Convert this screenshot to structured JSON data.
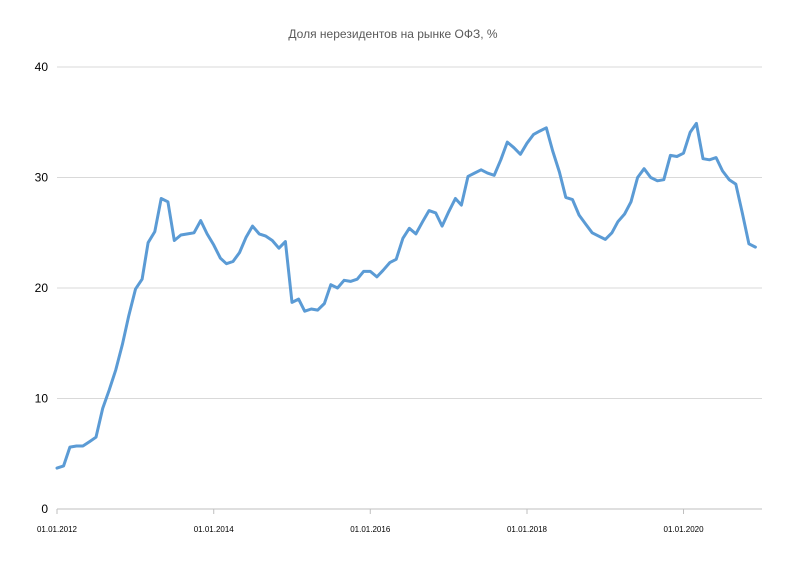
{
  "chart_data": {
    "type": "line",
    "title": "Доля нерезидентов на рынке ОФЗ, %",
    "xlabel": "",
    "ylabel": "",
    "ylim": [
      0,
      40
    ],
    "yticks": [
      "0",
      "10",
      "20",
      "30",
      "40"
    ],
    "xticks": [
      {
        "value": "2012-01-01",
        "label": "01.01.2012"
      },
      {
        "value": "2014-01-01",
        "label": "01.01.2014"
      },
      {
        "value": "2016-01-01",
        "label": "01.01.2016"
      },
      {
        "value": "2018-01-01",
        "label": "01.01.2018"
      },
      {
        "value": "2020-01-01",
        "label": "01.01.2020"
      }
    ],
    "xlim": [
      "2012-01-01",
      "2021-01-01"
    ],
    "grid": true,
    "legend": "none",
    "colors": {
      "series": "#5b9bd5",
      "grid": "#d9d9d9"
    },
    "series": [
      {
        "x": [
          "2012-01-01",
          "2012-02-01",
          "2012-03-01",
          "2012-04-01",
          "2012-05-01",
          "2012-06-01",
          "2012-07-01",
          "2012-08-01",
          "2012-09-01",
          "2012-10-01",
          "2012-11-01",
          "2012-12-01",
          "2013-01-01",
          "2013-02-01",
          "2013-03-01",
          "2013-04-01",
          "2013-05-01",
          "2013-06-01",
          "2013-07-01",
          "2013-08-01",
          "2013-09-01",
          "2013-10-01",
          "2013-11-01",
          "2013-12-01",
          "2014-01-01",
          "2014-02-01",
          "2014-03-01",
          "2014-04-01",
          "2014-05-01",
          "2014-06-01",
          "2014-07-01",
          "2014-08-01",
          "2014-09-01",
          "2014-10-01",
          "2014-11-01",
          "2014-12-01",
          "2015-01-01",
          "2015-02-01",
          "2015-03-01",
          "2015-04-01",
          "2015-05-01",
          "2015-06-01",
          "2015-07-01",
          "2015-08-01",
          "2015-09-01",
          "2015-10-01",
          "2015-11-01",
          "2015-12-01",
          "2016-01-01",
          "2016-02-01",
          "2016-03-01",
          "2016-04-01",
          "2016-05-01",
          "2016-06-01",
          "2016-07-01",
          "2016-08-01",
          "2016-09-01",
          "2016-10-01",
          "2016-11-01",
          "2016-12-01",
          "2017-01-01",
          "2017-02-01",
          "2017-03-01",
          "2017-04-01",
          "2017-05-01",
          "2017-06-01",
          "2017-07-01",
          "2017-08-01",
          "2017-09-01",
          "2017-10-01",
          "2017-11-01",
          "2017-12-01",
          "2018-01-01",
          "2018-02-01",
          "2018-03-01",
          "2018-04-01",
          "2018-05-01",
          "2018-06-01",
          "2018-07-01",
          "2018-08-01",
          "2018-09-01",
          "2018-10-01",
          "2018-11-01",
          "2018-12-01",
          "2019-01-01",
          "2019-02-01",
          "2019-03-01",
          "2019-04-01",
          "2019-05-01",
          "2019-06-01",
          "2019-07-01",
          "2019-08-01",
          "2019-09-01",
          "2019-10-01",
          "2019-11-01",
          "2019-12-01",
          "2020-01-01",
          "2020-02-01",
          "2020-03-01",
          "2020-04-01",
          "2020-05-01",
          "2020-06-01",
          "2020-07-01",
          "2020-08-01",
          "2020-09-01",
          "2020-10-01",
          "2020-11-01",
          "2020-12-01"
        ],
        "values": [
          3.7,
          3.9,
          5.6,
          5.7,
          5.7,
          6.1,
          6.5,
          9.1,
          10.8,
          12.6,
          14.9,
          17.5,
          19.9,
          20.8,
          24.1,
          25.1,
          28.1,
          27.8,
          24.3,
          24.8,
          24.9,
          25.0,
          26.1,
          24.9,
          23.9,
          22.7,
          22.2,
          22.4,
          23.2,
          24.6,
          25.6,
          24.9,
          24.7,
          24.3,
          23.6,
          24.2,
          18.7,
          19.0,
          17.9,
          18.1,
          18.0,
          18.6,
          20.3,
          20.0,
          20.7,
          20.6,
          20.8,
          21.5,
          21.5,
          21.0,
          21.6,
          22.3,
          22.6,
          24.5,
          25.4,
          24.9,
          26.0,
          27.0,
          26.8,
          25.6,
          26.9,
          28.1,
          27.5,
          30.1,
          30.4,
          30.7,
          30.4,
          30.2,
          31.6,
          33.2,
          32.7,
          32.1,
          33.1,
          33.9,
          34.2,
          34.5,
          32.4,
          30.5,
          28.2,
          28.0,
          26.6,
          25.8,
          25.0,
          24.7,
          24.4,
          25.0,
          26.0,
          26.7,
          27.8,
          30.0,
          30.8,
          30.0,
          29.7,
          29.8,
          32.0,
          31.9,
          32.2,
          34.1,
          34.9,
          31.7,
          31.6,
          31.8,
          30.6,
          29.8,
          29.4,
          26.8,
          24.0,
          23.7
        ]
      }
    ]
  }
}
